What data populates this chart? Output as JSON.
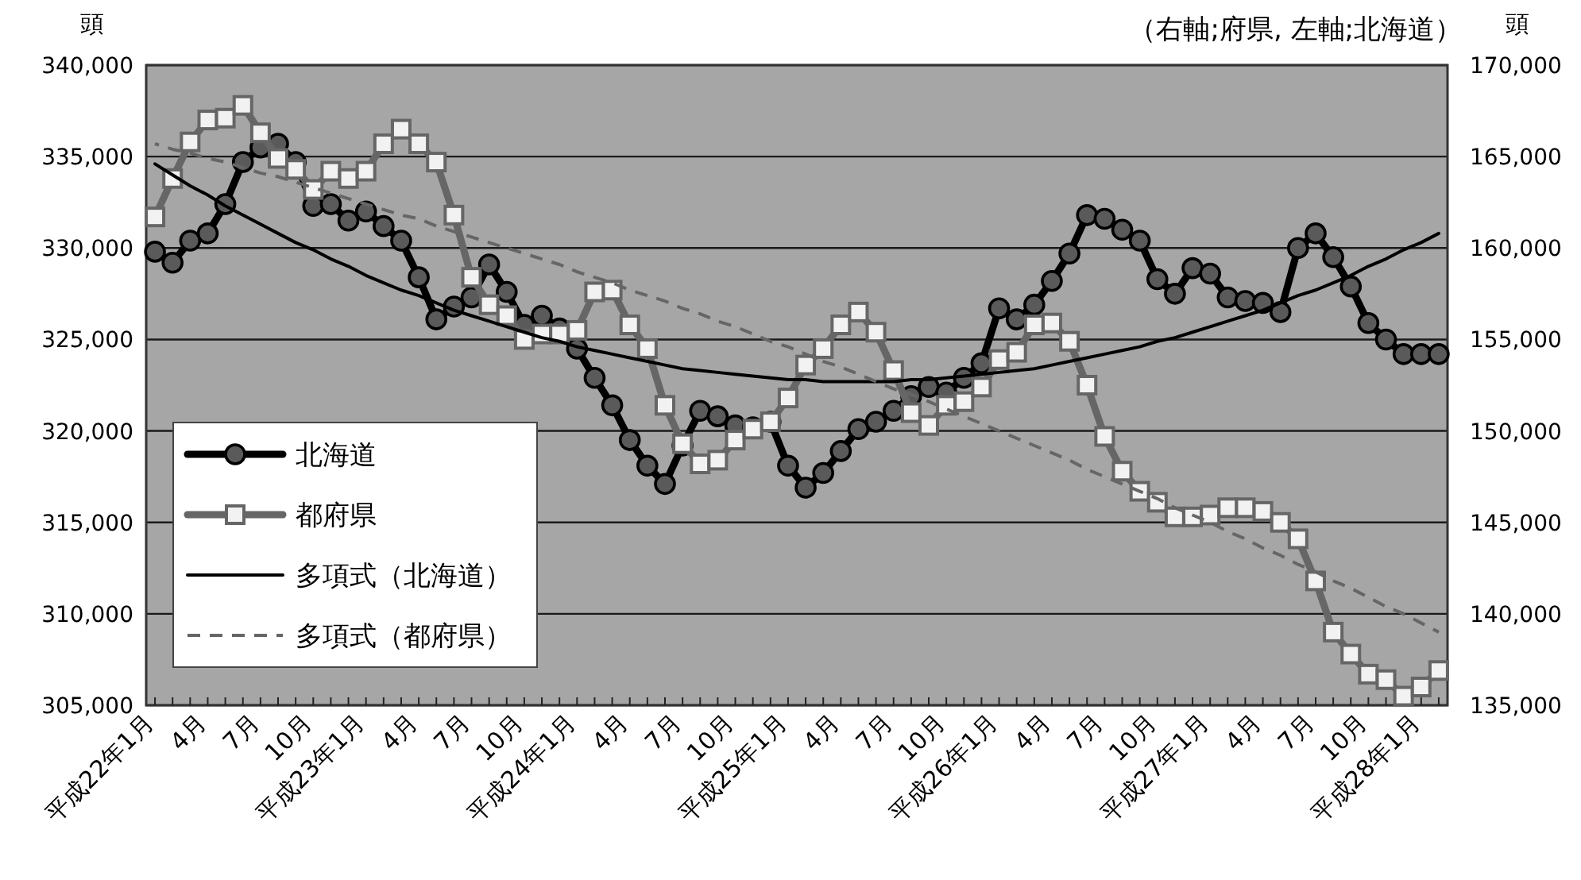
{
  "chart_data": {
    "type": "line",
    "ylabel": "頭",
    "y2label": "頭",
    "annotations": [
      "（右軸;府県, 左軸;北海道）"
    ],
    "categories": [
      "平成22年1月",
      null,
      null,
      "4月",
      null,
      null,
      "7月",
      null,
      null,
      "10月",
      null,
      null,
      "平成23年1月",
      null,
      null,
      "4月",
      null,
      null,
      "7月",
      null,
      null,
      "10月",
      null,
      null,
      "平成24年1月",
      null,
      null,
      "4月",
      null,
      null,
      "7月",
      null,
      null,
      "10月",
      null,
      null,
      "平成25年1月",
      null,
      null,
      "4月",
      null,
      null,
      "7月",
      null,
      null,
      "10月",
      null,
      null,
      "平成26年1月",
      null,
      null,
      "4月",
      null,
      null,
      "7月",
      null,
      null,
      "10月",
      null,
      null,
      "平成27年1月",
      null,
      null,
      "4月",
      null,
      null,
      "7月",
      null,
      null,
      "10月",
      null,
      null,
      "平成28年1月",
      null
    ],
    "series": [
      {
        "name": "北海道",
        "color": "#000000",
        "marker": "circle",
        "line_style": "solid",
        "values": [
          329800,
          329200,
          330400,
          330800,
          332400,
          334700,
          335500,
          335700,
          334700,
          332300,
          332400,
          331500,
          332000,
          331200,
          330400,
          328400,
          326100,
          326800,
          327300,
          329100,
          327600,
          325800,
          326300,
          325600,
          324500,
          322900,
          321400,
          319500,
          318100,
          317100,
          319200,
          321100,
          320800,
          320300,
          320200,
          320500,
          318100,
          316900,
          317700,
          318900,
          320100,
          320500,
          321100,
          321900,
          322400,
          322100,
          322900,
          323700,
          326700,
          326100,
          326900,
          328200,
          329700,
          331800,
          331600,
          331000,
          330400,
          328300,
          327500,
          328900,
          328600,
          327300,
          327100,
          327000,
          326500,
          330000,
          330800,
          329500,
          327900,
          325900,
          325000,
          324200,
          324200,
          324200
        ]
      },
      {
        "name": "都府県",
        "color": "#666666",
        "axis": "y2",
        "marker": "square",
        "line_style": "solid",
        "values": [
          161700,
          163800,
          165800,
          167000,
          167100,
          167800,
          166300,
          164900,
          164300,
          163200,
          164200,
          163800,
          164200,
          165700,
          166500,
          165700,
          164700,
          161800,
          158400,
          156900,
          156300,
          155000,
          155300,
          155300,
          155500,
          157600,
          157700,
          155800,
          154500,
          151400,
          149300,
          148200,
          148400,
          149500,
          150100,
          150500,
          151800,
          153600,
          154500,
          155800,
          156500,
          155400,
          153300,
          151000,
          150300,
          151400,
          151600,
          152400,
          153900,
          154300,
          155800,
          155900,
          154900,
          152500,
          149700,
          147800,
          146700,
          146100,
          145300,
          145300,
          145400,
          145800,
          145800,
          145600,
          145000,
          144100,
          141800,
          139000,
          137800,
          136700,
          136400,
          135500,
          136000,
          136900
        ]
      },
      {
        "name": "多項式（北海道）",
        "color": "#000000",
        "marker": "none",
        "line_style": "solid",
        "values": [
          334600,
          334000,
          333400,
          332900,
          332300,
          331800,
          331300,
          330800,
          330300,
          329900,
          329400,
          329000,
          328500,
          328100,
          327700,
          327400,
          327000,
          326600,
          326300,
          326000,
          325700,
          325400,
          325100,
          324900,
          324600,
          324400,
          324200,
          324000,
          323800,
          323600,
          323400,
          323300,
          323200,
          323100,
          323000,
          322900,
          322800,
          322800,
          322700,
          322700,
          322700,
          322700,
          322700,
          322800,
          322800,
          322900,
          323000,
          323100,
          323200,
          323300,
          323400,
          323600,
          323800,
          324000,
          324200,
          324400,
          324600,
          324900,
          325100,
          325400,
          325700,
          326000,
          326300,
          326600,
          327000,
          327400,
          327700,
          328100,
          328500,
          329000,
          329400,
          329900,
          330300,
          330800
        ]
      },
      {
        "name": "多項式（都府県）",
        "color": "#666666",
        "axis": "y2",
        "marker": "none",
        "line_style": "dashed",
        "values": [
          165700,
          165400,
          165200,
          164900,
          164700,
          164400,
          164100,
          163900,
          163600,
          163300,
          163000,
          162700,
          162400,
          162100,
          161800,
          161600,
          161200,
          160900,
          160600,
          160300,
          160000,
          159700,
          159400,
          159100,
          158700,
          158400,
          158100,
          157700,
          157400,
          157100,
          156700,
          156400,
          156000,
          155700,
          155300,
          154900,
          154600,
          154200,
          153800,
          153500,
          153100,
          152700,
          152300,
          152000,
          151600,
          151200,
          150800,
          150400,
          150000,
          149600,
          149200,
          148800,
          148400,
          147900,
          147500,
          147100,
          146700,
          146300,
          145800,
          145400,
          145000,
          144500,
          144100,
          143600,
          143200,
          142700,
          142300,
          141800,
          141400,
          140900,
          140400,
          140000,
          139500,
          139000
        ]
      }
    ],
    "ylim": [
      305000,
      340000
    ],
    "yticks": [
      {
        "value": 305000,
        "label": "305,000"
      },
      {
        "value": 310000,
        "label": "310,000"
      },
      {
        "value": 315000,
        "label": "315,000"
      },
      {
        "value": 320000,
        "label": "320,000"
      },
      {
        "value": 325000,
        "label": "325,000"
      },
      {
        "value": 330000,
        "label": "330,000"
      },
      {
        "value": 335000,
        "label": "335,000"
      },
      {
        "value": 340000,
        "label": "340,000"
      }
    ],
    "y2lim": [
      135000,
      170000
    ],
    "y2ticks": [
      {
        "value": 135000,
        "label": "135,000"
      },
      {
        "value": 140000,
        "label": "140,000"
      },
      {
        "value": 145000,
        "label": "145,000"
      },
      {
        "value": 150000,
        "label": "150,000"
      },
      {
        "value": 155000,
        "label": "155,000"
      },
      {
        "value": 160000,
        "label": "160,000"
      },
      {
        "value": 165000,
        "label": "165,000"
      },
      {
        "value": 170000,
        "label": "170,000"
      }
    ],
    "grid": "y",
    "legend": "bottom left"
  }
}
